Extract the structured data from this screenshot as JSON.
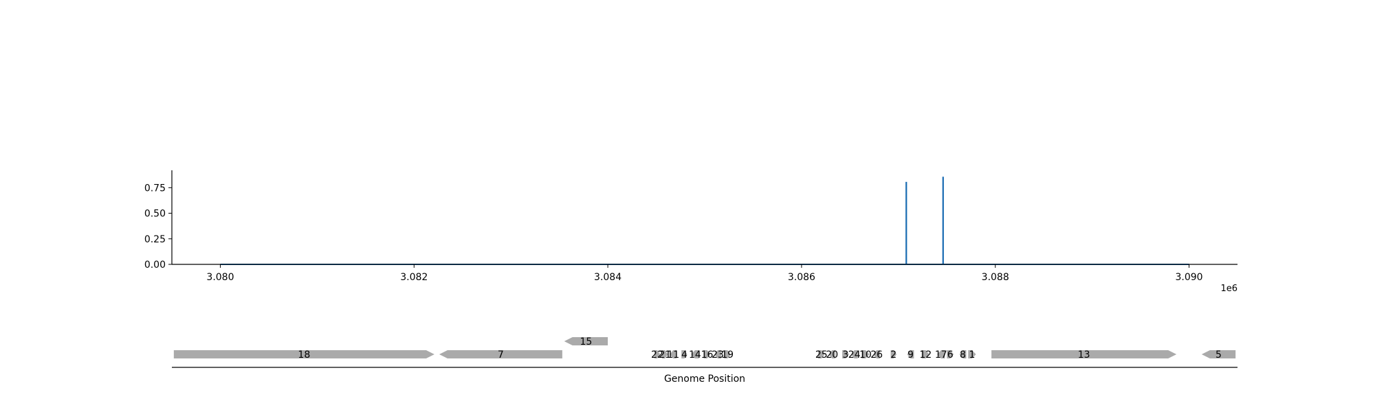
{
  "colors": {
    "line": "#1f6fb4",
    "feature": "#aaaaaa",
    "axis": "#000000"
  },
  "chart_data": [
    {
      "type": "line",
      "title": "",
      "xlabel": "",
      "ylabel": "",
      "x_offset_label": "1e6",
      "xlim": [
        3079500,
        3090500
      ],
      "ylim": [
        0,
        0.92
      ],
      "x_ticks": [
        3080000,
        3082000,
        3084000,
        3086000,
        3088000,
        3090000
      ],
      "x_tick_labels": [
        "3.080",
        "3.082",
        "3.084",
        "3.086",
        "3.088",
        "3.090"
      ],
      "y_ticks": [
        0,
        0.25,
        0.5,
        0.75
      ],
      "y_tick_labels": [
        "0.00",
        "0.25",
        "0.50",
        "0.75"
      ],
      "grid": false,
      "series": [
        {
          "x": [
            3080000,
            3087080,
            3087080,
            3087082,
            3087082,
            3087460,
            3087460,
            3087462,
            3087462,
            3090000
          ],
          "y": [
            0,
            0,
            0.8,
            0.8,
            0,
            0,
            0.85,
            0.85,
            0,
            0
          ]
        }
      ]
    },
    {
      "type": "gene-map",
      "xlabel": "Genome Position",
      "features": [
        {
          "label": "18",
          "start": 3079520,
          "end": 3082210,
          "strand": 1,
          "row": 0
        },
        {
          "label": "7",
          "start": 3082260,
          "end": 3083530,
          "strand": -1,
          "row": 0
        },
        {
          "label": "15",
          "start": 3083550,
          "end": 3084000,
          "strand": -1,
          "row": 1
        },
        {
          "label": "22",
          "start": 3084480,
          "end": 3084540,
          "strand": 1,
          "row": 0
        },
        {
          "label": "21",
          "start": 3084560,
          "end": 3084620,
          "strand": 1,
          "row": 0
        },
        {
          "label": "11",
          "start": 3084640,
          "end": 3084710,
          "strand": -1,
          "row": 0
        },
        {
          "label": "4",
          "start": 3084760,
          "end": 3084820,
          "strand": 1,
          "row": 0
        },
        {
          "label": "14",
          "start": 3084860,
          "end": 3084940,
          "strand": -1,
          "row": 0
        },
        {
          "label": "16",
          "start": 3084990,
          "end": 3085060,
          "strand": 1,
          "row": 0
        },
        {
          "label": "23",
          "start": 3085100,
          "end": 3085170,
          "strand": -1,
          "row": 0
        },
        {
          "label": "19",
          "start": 3085200,
          "end": 3085270,
          "strand": 1,
          "row": 0
        },
        {
          "label": "25",
          "start": 3086170,
          "end": 3086240,
          "strand": 1,
          "row": 0
        },
        {
          "label": "20",
          "start": 3086280,
          "end": 3086350,
          "strand": -1,
          "row": 0
        },
        {
          "label": "3",
          "start": 3086420,
          "end": 3086490,
          "strand": 1,
          "row": 0
        },
        {
          "label": "24",
          "start": 3086510,
          "end": 3086580,
          "strand": -1,
          "row": 0
        },
        {
          "label": "10",
          "start": 3086620,
          "end": 3086700,
          "strand": 1,
          "row": 0
        },
        {
          "label": "26",
          "start": 3086740,
          "end": 3086810,
          "strand": -1,
          "row": 0
        },
        {
          "label": "2",
          "start": 3086920,
          "end": 3086980,
          "strand": 1,
          "row": 0
        },
        {
          "label": "9",
          "start": 3087090,
          "end": 3087160,
          "strand": -1,
          "row": 0
        },
        {
          "label": "12",
          "start": 3087240,
          "end": 3087320,
          "strand": 1,
          "row": 0
        },
        {
          "label": "17",
          "start": 3087400,
          "end": 3087480,
          "strand": -1,
          "row": 0
        },
        {
          "label": "6",
          "start": 3087500,
          "end": 3087570,
          "strand": 1,
          "row": 0
        },
        {
          "label": "8",
          "start": 3087630,
          "end": 3087700,
          "strand": -1,
          "row": 0
        },
        {
          "label": "1",
          "start": 3087720,
          "end": 3087800,
          "strand": 1,
          "row": 0
        },
        {
          "label": "13",
          "start": 3087960,
          "end": 3089870,
          "strand": 1,
          "row": 0
        },
        {
          "label": "5",
          "start": 3090130,
          "end": 3090480,
          "strand": -1,
          "row": 0
        }
      ]
    }
  ]
}
